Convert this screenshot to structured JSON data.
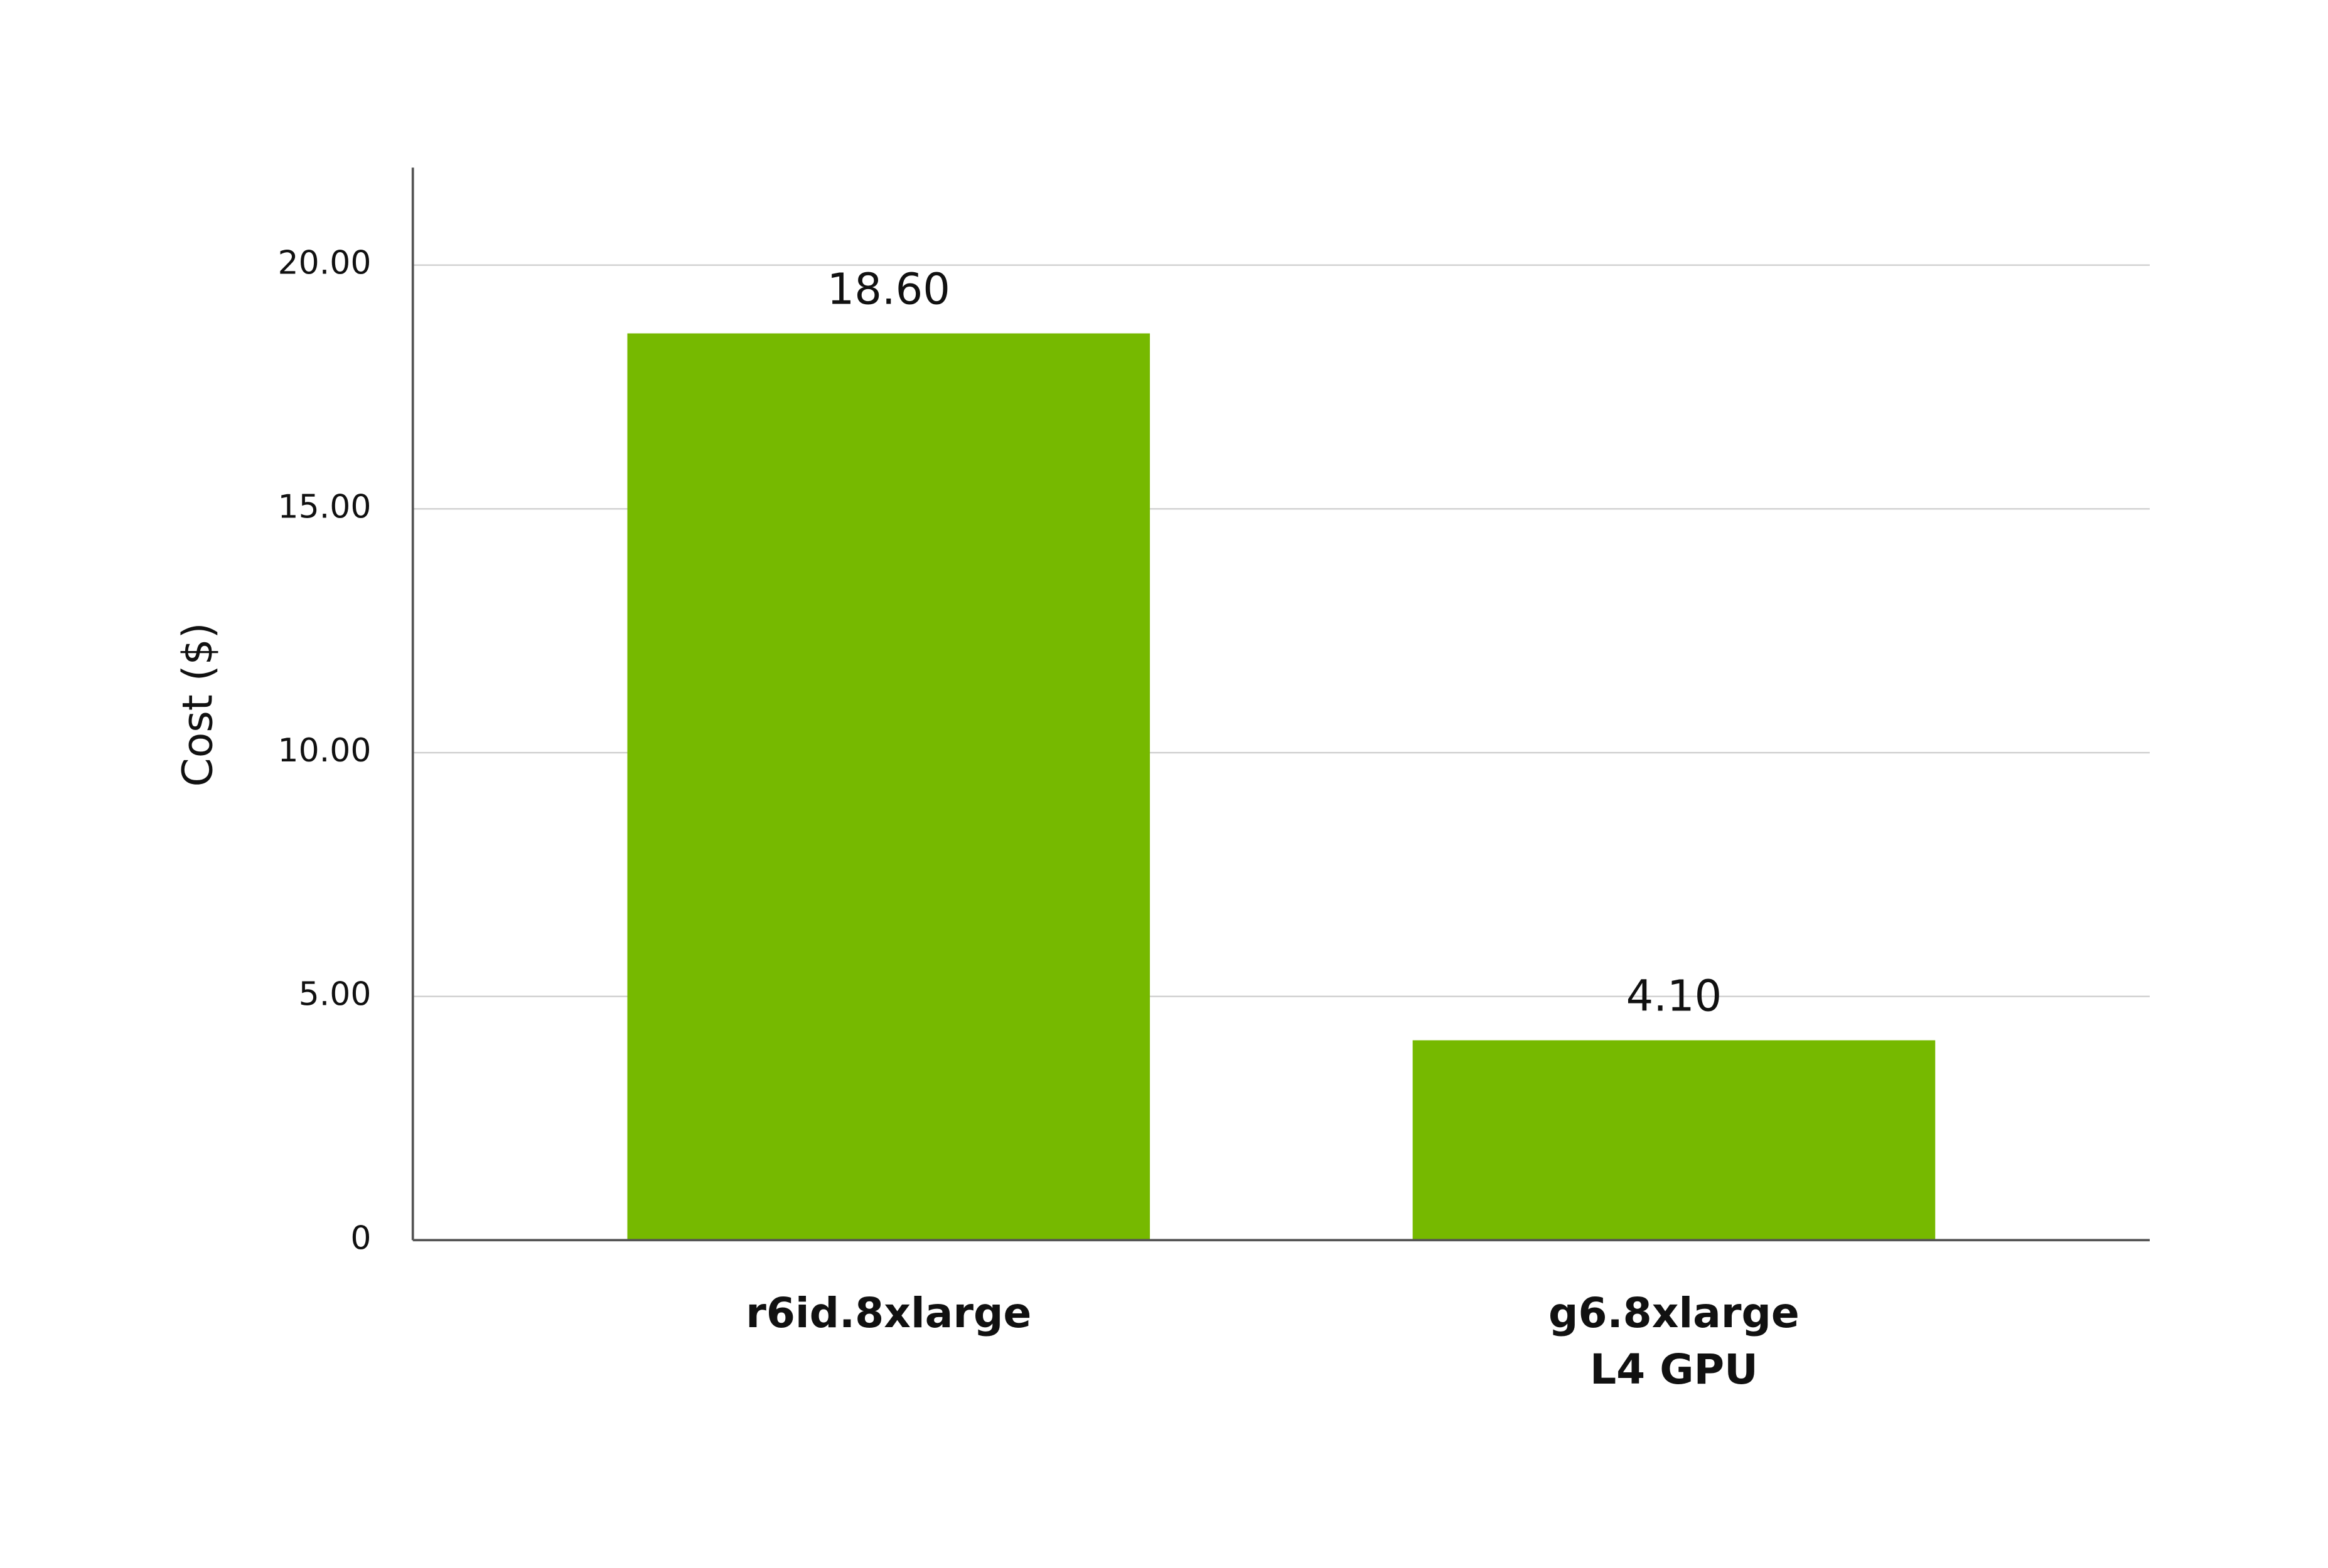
{
  "chart_data": {
    "type": "bar",
    "y_label": "Cost ($)",
    "categories": [
      [
        "r6id.8xlarge"
      ],
      [
        "g6.8xlarge",
        "L4 GPU"
      ]
    ],
    "values": [
      18.6,
      4.1
    ],
    "value_labels": [
      "18.60",
      "4.10"
    ],
    "color": "#76b900",
    "ylim": [
      0,
      22
    ],
    "yticks": [
      0,
      {
        "value": 5,
        "label": "5.00"
      },
      {
        "value": 10,
        "label": "10.00"
      },
      {
        "value": 15,
        "label": "15.00"
      },
      {
        "value": 20,
        "label": "20.00"
      }
    ],
    "grid": true
  }
}
